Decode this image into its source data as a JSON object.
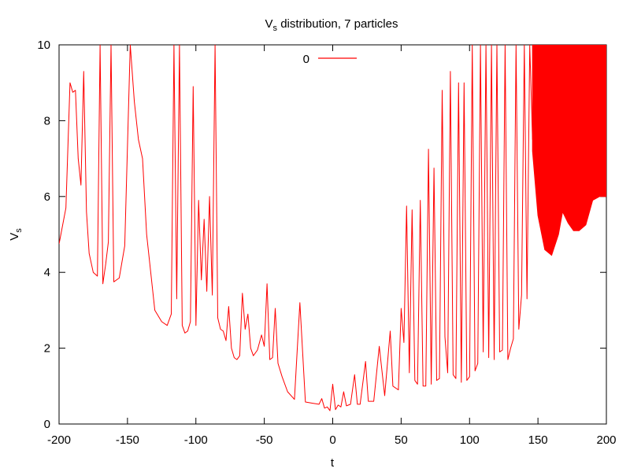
{
  "chart_data": {
    "type": "line",
    "title": {
      "main": "V",
      "sub": "s",
      "rest": " distribution, 7 particles"
    },
    "xlabel": "t",
    "ylabel": {
      "main": "V",
      "sub": "s"
    },
    "xlim": [
      -200,
      200
    ],
    "ylim": [
      0,
      10
    ],
    "x_ticks": [
      -200,
      -150,
      -100,
      -50,
      0,
      50,
      100,
      150,
      200
    ],
    "y_ticks": [
      0,
      2,
      4,
      6,
      8,
      10
    ],
    "grid": false,
    "legend": {
      "placement": "top-center",
      "entries": [
        "0"
      ]
    },
    "series": [
      {
        "name": "0",
        "color": "#ff0000",
        "x": [
          -200,
          -195,
          -192,
          -190,
          -188,
          -186,
          -184,
          -182,
          -180,
          -178,
          -175,
          -172,
          -170,
          -168,
          -166,
          -164,
          -162,
          -160,
          -156,
          -152,
          -148,
          -145,
          -142,
          -139,
          -136,
          -130,
          -125,
          -121,
          -118,
          -116,
          -114,
          -112,
          -110,
          -108,
          -106,
          -104,
          -102,
          -100,
          -98,
          -96,
          -94,
          -92,
          -90,
          -88,
          -86,
          -84,
          -82,
          -80,
          -78,
          -76,
          -74,
          -72,
          -70,
          -68,
          -66,
          -64,
          -62,
          -60,
          -58,
          -55,
          -52,
          -50,
          -48,
          -46,
          -44,
          -42,
          -40,
          -37,
          -33,
          -28,
          -24,
          -20,
          -15,
          -10,
          -8,
          -6,
          -4,
          -2,
          0,
          2,
          4,
          6,
          8,
          10,
          13,
          16,
          18,
          20,
          24,
          26,
          30,
          34,
          38,
          42,
          44,
          48,
          50,
          52,
          54,
          56,
          58,
          60,
          62,
          64,
          66,
          68,
          70,
          72,
          74,
          76,
          78,
          80,
          82,
          84,
          86,
          88,
          90,
          92,
          94,
          96,
          98,
          100,
          102,
          104,
          106,
          108,
          110,
          112,
          114,
          116,
          118,
          120,
          122,
          124,
          126,
          128,
          130,
          132,
          134,
          136,
          138,
          140,
          142,
          144,
          146
        ],
        "y": [
          4.75,
          5.7,
          9.0,
          8.75,
          8.8,
          7.0,
          6.3,
          9.3,
          5.6,
          4.5,
          4.0,
          3.9,
          10.0,
          3.7,
          4.2,
          4.8,
          10.0,
          3.75,
          3.85,
          4.7,
          10.0,
          8.5,
          7.5,
          7.0,
          5.0,
          3.0,
          2.7,
          2.6,
          2.9,
          10.0,
          3.3,
          10.0,
          2.6,
          2.4,
          2.45,
          2.7,
          8.9,
          2.6,
          5.9,
          3.8,
          5.4,
          3.5,
          6.0,
          3.4,
          10.0,
          2.8,
          2.5,
          2.45,
          2.2,
          3.1,
          2.0,
          1.75,
          1.7,
          1.8,
          3.45,
          2.5,
          2.9,
          2.0,
          1.8,
          1.95,
          2.35,
          2.05,
          3.7,
          1.7,
          1.75,
          3.05,
          1.6,
          1.25,
          0.85,
          0.65,
          3.2,
          0.58,
          0.55,
          0.52,
          0.67,
          0.42,
          0.45,
          0.35,
          1.05,
          0.38,
          0.5,
          0.45,
          0.85,
          0.48,
          0.52,
          1.3,
          0.52,
          0.52,
          1.65,
          0.6,
          0.6,
          2.05,
          0.75,
          2.45,
          1.0,
          0.9,
          3.05,
          2.15,
          5.75,
          1.35,
          5.65,
          1.15,
          1.05,
          5.9,
          1.0,
          1.0,
          7.25,
          1.05,
          6.75,
          1.15,
          1.2,
          8.8,
          2.3,
          1.35,
          9.3,
          1.3,
          1.2,
          9.0,
          1.1,
          9.0,
          1.15,
          1.25,
          10.0,
          1.4,
          1.6,
          10.0,
          1.9,
          10.0,
          1.75,
          10.0,
          1.7,
          10.0,
          1.9,
          1.95,
          10.0,
          1.7,
          2.0,
          2.25,
          10.0,
          2.5,
          3.4,
          10.0,
          3.3,
          10.0,
          7.5
        ]
      }
    ],
    "oscillation_region": {
      "x_range": [
        146,
        200
      ],
      "lower_envelope_x": [
        146,
        150,
        155,
        160,
        165,
        168,
        172,
        176,
        180,
        185,
        190,
        195,
        200
      ],
      "lower_envelope_y": [
        7.2,
        5.5,
        4.6,
        4.45,
        5.0,
        5.6,
        5.3,
        5.1,
        5.1,
        5.25,
        5.9,
        6.0,
        6.0
      ]
    }
  }
}
